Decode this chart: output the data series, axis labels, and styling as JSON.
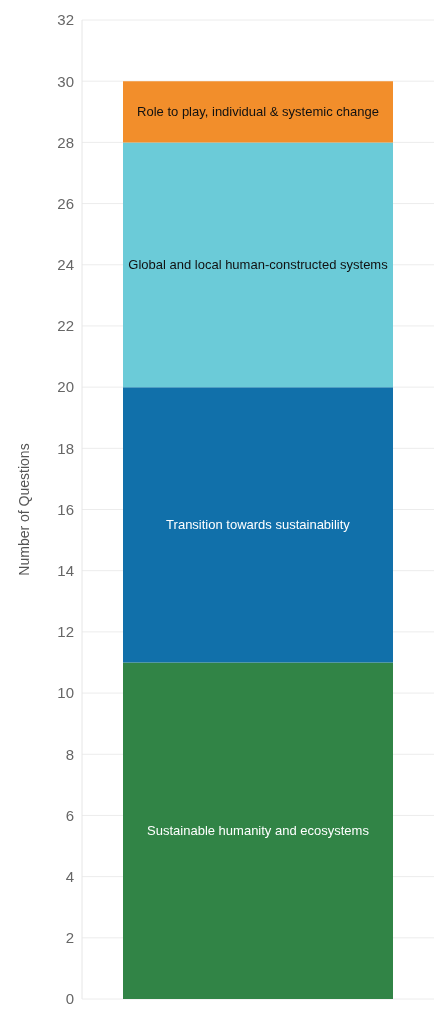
{
  "chart_data": {
    "type": "bar",
    "stacked": true,
    "ylabel": "Number of Questions",
    "categories": [
      null
    ],
    "series": [
      {
        "name": "Sustainable humanity and ecosystems",
        "color": "#318446",
        "values": [
          11
        ]
      },
      {
        "name": "Transition towards sustainability",
        "color": "#1170aa",
        "values": [
          9
        ]
      },
      {
        "name": "Global and local human-constructed systems",
        "color": "#6bcbd8",
        "values": [
          8
        ]
      },
      {
        "name": "Role to play, individual & systemic change",
        "color": "#f28e2b",
        "values": [
          2
        ]
      }
    ],
    "ylim": [
      0,
      32
    ],
    "yticks": [
      0,
      2,
      4,
      6,
      8,
      10,
      12,
      14,
      16,
      18,
      20,
      22,
      24,
      26,
      28,
      30,
      32
    ],
    "grid": "y",
    "tick_labels": "y"
  }
}
